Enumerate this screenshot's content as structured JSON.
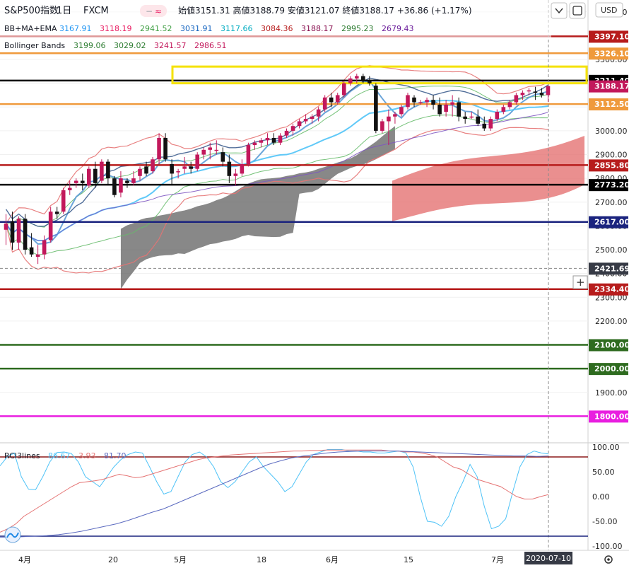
{
  "header": {
    "symbol": "S&P500指数",
    "interval": "1日",
    "source": "FXCM",
    "quote": "始値3151.31  高値3188.79  安値3121.07  終値3188.17  +36.86 (+1.17%)",
    "currency": "USD"
  },
  "indicators": {
    "bbma": {
      "name": "BB+MA+EMA",
      "values": [
        "3167.91",
        "3118.19",
        "2941.52",
        "3031.91",
        "3117.66",
        "3084.36",
        "3188.17",
        "2995.23",
        "2679.43"
      ],
      "colors": [
        "#2196f3",
        "#e91e63",
        "#43a047",
        "#1565c0",
        "#00acc1",
        "#b71c1c",
        "#880e4f",
        "#2e7d32",
        "#6a1b9a"
      ]
    },
    "bb": {
      "name": "Bollinger Bands",
      "values": [
        "3199.06",
        "3029.02",
        "3241.57",
        "2986.51"
      ],
      "colors": [
        "#2e7d32",
        "#2e7d32",
        "#c2185b",
        "#c2185b"
      ]
    },
    "rci": {
      "name": "RCI3lines",
      "values": [
        "86.67",
        "3.93",
        "81.70"
      ],
      "colors": [
        "#4fc3f7",
        "#e57373",
        "#5c6bc0"
      ]
    }
  },
  "icons": {
    "down": "chevron-down-icon",
    "fullscreen": "fullscreen-icon",
    "settings": "gear-icon",
    "add": "plus-icon",
    "logo": "tradingview-logo-icon"
  },
  "chart_data": {
    "type": "candlestick",
    "ylim": [
      1700,
      3550
    ],
    "y_ticks": [
      1800,
      1900,
      2000,
      2100,
      2200,
      2300,
      2400,
      2500,
      2600,
      2700,
      2800,
      2900,
      3000,
      3100,
      3200,
      3300,
      3400,
      3500
    ],
    "x_ticks": [
      "4月",
      "20",
      "5月",
      "18",
      "6月",
      "15",
      "7月"
    ],
    "candles": [
      [
        2584,
        2650,
        2520,
        2610
      ],
      [
        2620,
        2660,
        2500,
        2530
      ],
      [
        2530,
        2640,
        2500,
        2630
      ],
      [
        2630,
        2650,
        2480,
        2500
      ],
      [
        2510,
        2570,
        2470,
        2480
      ],
      [
        2470,
        2520,
        2440,
        2480
      ],
      [
        2480,
        2560,
        2460,
        2540
      ],
      [
        2540,
        2680,
        2530,
        2660
      ],
      [
        2660,
        2680,
        2630,
        2650
      ],
      [
        2660,
        2760,
        2650,
        2750
      ],
      [
        2750,
        2790,
        2730,
        2760
      ],
      [
        2780,
        2800,
        2760,
        2790
      ],
      [
        2790,
        2820,
        2750,
        2780
      ],
      [
        2770,
        2850,
        2760,
        2840
      ],
      [
        2840,
        2870,
        2760,
        2780
      ],
      [
        2790,
        2880,
        2780,
        2870
      ],
      [
        2870,
        2880,
        2770,
        2800
      ],
      [
        2800,
        2810,
        2720,
        2730
      ],
      [
        2740,
        2830,
        2720,
        2800
      ],
      [
        2790,
        2800,
        2760,
        2780
      ],
      [
        2780,
        2830,
        2770,
        2800
      ],
      [
        2810,
        2850,
        2790,
        2840
      ],
      [
        2850,
        2870,
        2810,
        2820
      ],
      [
        2830,
        2890,
        2820,
        2880
      ],
      [
        2880,
        2990,
        2860,
        2970
      ],
      [
        2970,
        2990,
        2870,
        2880
      ],
      [
        2860,
        2880,
        2770,
        2820
      ],
      [
        2830,
        2840,
        2800,
        2830
      ],
      [
        2840,
        2890,
        2820,
        2850
      ],
      [
        2850,
        2870,
        2820,
        2840
      ],
      [
        2840,
        2910,
        2830,
        2900
      ],
      [
        2900,
        2930,
        2880,
        2920
      ],
      [
        2920,
        2950,
        2880,
        2930
      ],
      [
        2920,
        2960,
        2900,
        2920
      ],
      [
        2910,
        2930,
        2850,
        2870
      ],
      [
        2870,
        2900,
        2780,
        2810
      ],
      [
        2810,
        2840,
        2770,
        2820
      ],
      [
        2820,
        2880,
        2810,
        2860
      ],
      [
        2860,
        2950,
        2850,
        2940
      ],
      [
        2940,
        2960,
        2920,
        2950
      ],
      [
        2950,
        2970,
        2930,
        2960
      ],
      [
        2960,
        2990,
        2940,
        2970
      ],
      [
        2970,
        2990,
        2940,
        2950
      ],
      [
        2950,
        2990,
        2940,
        2980
      ],
      [
        2980,
        3010,
        2970,
        3000
      ],
      [
        3000,
        3030,
        2980,
        3020
      ],
      [
        3020,
        3050,
        3010,
        3040
      ],
      [
        3040,
        3070,
        3030,
        3050
      ],
      [
        3050,
        3070,
        3030,
        3060
      ],
      [
        3060,
        3100,
        3040,
        3090
      ],
      [
        3090,
        3150,
        3080,
        3140
      ],
      [
        3140,
        3160,
        3100,
        3120
      ],
      [
        3120,
        3160,
        3110,
        3150
      ],
      [
        3150,
        3210,
        3140,
        3200
      ],
      [
        3200,
        3230,
        3190,
        3220
      ],
      [
        3220,
        3240,
        3200,
        3230
      ],
      [
        3230,
        3240,
        3200,
        3210
      ],
      [
        3210,
        3230,
        3190,
        3200
      ],
      [
        3190,
        3200,
        2990,
        3000
      ],
      [
        3000,
        3050,
        2990,
        3040
      ],
      [
        3040,
        3090,
        2940,
        3060
      ],
      [
        3060,
        3080,
        3030,
        3070
      ],
      [
        3070,
        3110,
        3060,
        3100
      ],
      [
        3100,
        3160,
        3090,
        3150
      ],
      [
        3140,
        3150,
        3100,
        3120
      ],
      [
        3120,
        3130,
        3110,
        3120
      ],
      [
        3120,
        3140,
        3100,
        3130
      ],
      [
        3130,
        3150,
        3090,
        3110
      ],
      [
        3110,
        3140,
        3060,
        3070
      ],
      [
        3080,
        3130,
        3060,
        3110
      ],
      [
        3110,
        3150,
        3060,
        3120
      ],
      [
        3120,
        3140,
        3040,
        3060
      ],
      [
        3060,
        3080,
        3030,
        3050
      ],
      [
        3060,
        3080,
        3050,
        3060
      ],
      [
        3060,
        3090,
        3020,
        3030
      ],
      [
        3030,
        3060,
        3000,
        3010
      ],
      [
        3010,
        3060,
        3000,
        3050
      ],
      [
        3050,
        3090,
        3040,
        3080
      ],
      [
        3080,
        3110,
        3070,
        3100
      ],
      [
        3100,
        3130,
        3090,
        3120
      ],
      [
        3120,
        3160,
        3110,
        3150
      ],
      [
        3150,
        3170,
        3130,
        3160
      ],
      [
        3170,
        3180,
        3150,
        3170
      ],
      [
        3165,
        3185,
        3130,
        3160
      ],
      [
        3160,
        3180,
        3140,
        3150
      ],
      [
        3150,
        3189,
        3121,
        3188
      ]
    ],
    "levels": [
      {
        "value": 3397.1,
        "label": "3397.10",
        "color": "#b71c1c"
      },
      {
        "value": 3326.1,
        "label": "3326.10",
        "color": "#ef9a3c"
      },
      {
        "value": 3211.4,
        "label": "3211.40",
        "color": "#000000"
      },
      {
        "value": 3112.5,
        "label": "3112.50",
        "color": "#ef9a3c"
      },
      {
        "value": 2855.8,
        "label": "2855.80",
        "color": "#b71c1c"
      },
      {
        "value": 2773.2,
        "label": "2773.20",
        "color": "#000000"
      },
      {
        "value": 2617.0,
        "label": "2617.00",
        "color": "#1a237e"
      },
      {
        "value": 2334.4,
        "label": "2334.40",
        "color": "#b71c1c"
      },
      {
        "value": 2100.0,
        "label": "2100.00",
        "color": "#2e6b1f"
      },
      {
        "value": 2000.0,
        "label": "2000.00",
        "color": "#2e6b1f"
      },
      {
        "value": 1800.0,
        "label": "1800.00",
        "color": "#e91ee0"
      }
    ],
    "crosshair": {
      "price": "2421.69",
      "date": "2020-07-10"
    },
    "last_price": {
      "label": "3188.17",
      "color": "#c2185b"
    },
    "highlight_box": {
      "from": 3200,
      "to": 3270,
      "color": "#f5e200"
    },
    "rci": {
      "ylim": [
        -100,
        100
      ],
      "y_ticks": [
        "100.00",
        "50.00",
        "0.00",
        "-50.00",
        "-100.00"
      ],
      "levels": [
        80,
        -80
      ],
      "fast": [
        62,
        80,
        88,
        40,
        15,
        14,
        40,
        70,
        89,
        90,
        87,
        70,
        40,
        30,
        20,
        40,
        60,
        75,
        85,
        90,
        88,
        60,
        30,
        5,
        10,
        40,
        70,
        85,
        90,
        80,
        60,
        30,
        18,
        30,
        50,
        70,
        80,
        60,
        45,
        30,
        10,
        20,
        45,
        70,
        85,
        90,
        95,
        95,
        95,
        92,
        92,
        90,
        90,
        88,
        88,
        90,
        92,
        88,
        60,
        0,
        -50,
        -52,
        -60,
        -40,
        0,
        30,
        65,
        40,
        -20,
        -65,
        -60,
        -45,
        10,
        60,
        85,
        92,
        88,
        86
      ],
      "mid": [
        -72,
        -65,
        -55,
        -40,
        -30,
        -20,
        -10,
        0,
        10,
        20,
        28,
        30,
        32,
        35,
        40,
        45,
        42,
        38,
        40,
        45,
        50,
        55,
        60,
        65,
        70,
        75,
        78,
        80,
        82,
        84,
        85,
        86,
        87,
        88,
        89,
        90,
        91,
        92,
        92,
        93,
        93,
        94,
        94,
        94,
        94,
        94,
        94,
        94,
        94,
        92,
        92,
        90,
        90,
        88,
        85,
        80,
        70,
        60,
        55,
        45,
        35,
        30,
        25,
        20,
        10,
        0,
        -5,
        -5,
        0,
        4
      ],
      "slow": [
        -82,
        -82,
        -81,
        -80,
        -79,
        -77,
        -74,
        -70,
        -65,
        -60,
        -55,
        -48,
        -40,
        -32,
        -25,
        -15,
        -5,
        5,
        15,
        25,
        35,
        45,
        55,
        65,
        72,
        78,
        82,
        85,
        88,
        90,
        91,
        92,
        92,
        92,
        92,
        91,
        90,
        89,
        88,
        87,
        86,
        85,
        84,
        83,
        82,
        82,
        81,
        82
      ]
    }
  }
}
